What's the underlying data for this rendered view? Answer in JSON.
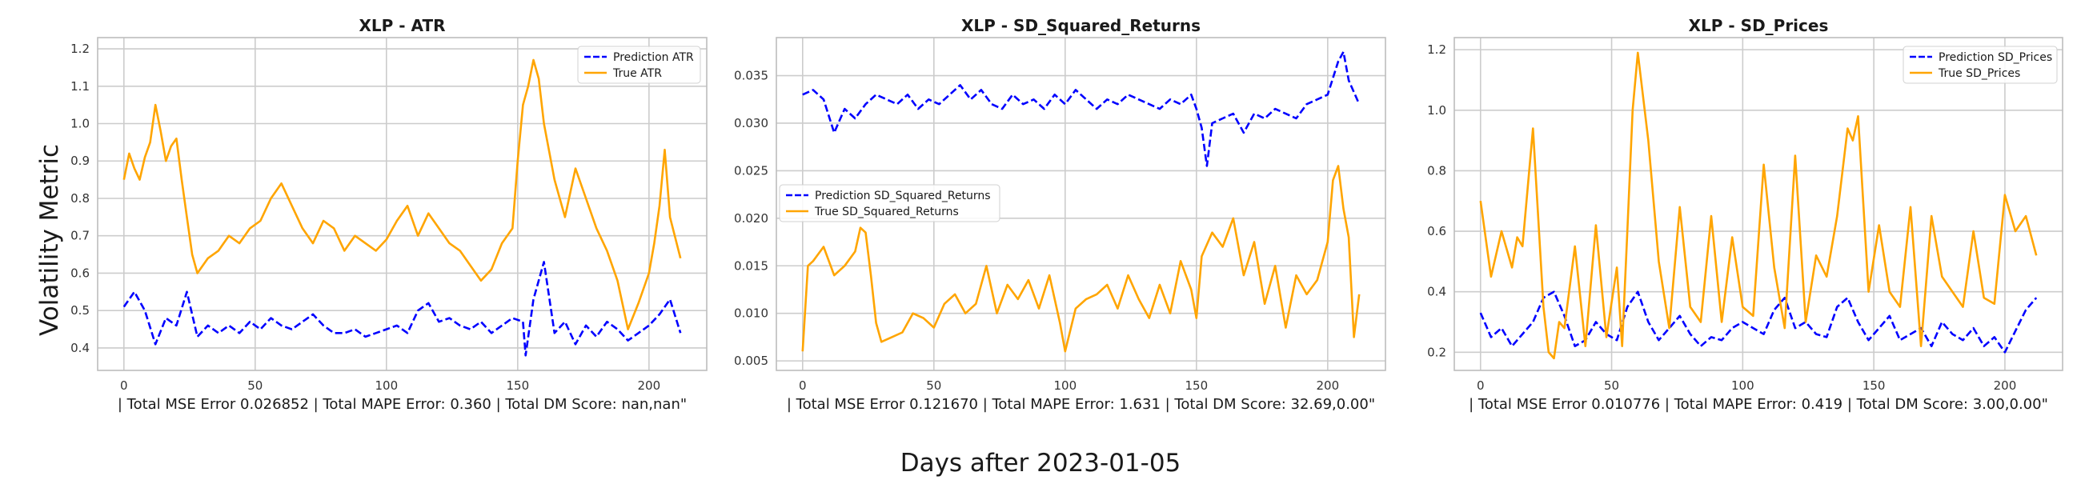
{
  "figure": {
    "supxlabel": "Days after 2023-01-05",
    "supylabel": "Volatility Metric",
    "colors": {
      "prediction": "#0000ff",
      "true": "#ffa500",
      "grid": "#cccccc",
      "frame": "#bdbdbd"
    }
  },
  "chart_data": [
    {
      "type": "line",
      "title": "XLP - ATR",
      "xlabel": "| Total MSE Error 0.026852 | Total MAPE Error: 0.360 | Total DM Score: nan,nan\"",
      "ylabel": "",
      "xlim": [
        -10,
        222
      ],
      "ylim": [
        0.34,
        1.23
      ],
      "xticks": [
        0,
        50,
        100,
        150,
        200
      ],
      "yticks": [
        0.4,
        0.5,
        0.6,
        0.7,
        0.8,
        0.9,
        1.0,
        1.1,
        1.2
      ],
      "tick_decimals": 1,
      "legend": "top-right",
      "series": [
        {
          "name": "Prediction ATR",
          "style": "dashed",
          "color": "#0000ff",
          "x": [
            0,
            4,
            8,
            12,
            16,
            20,
            24,
            28,
            32,
            36,
            40,
            44,
            48,
            52,
            56,
            60,
            64,
            68,
            72,
            76,
            80,
            84,
            88,
            92,
            96,
            100,
            104,
            108,
            112,
            116,
            120,
            124,
            128,
            132,
            136,
            140,
            144,
            148,
            152,
            153,
            156,
            160,
            164,
            168,
            172,
            176,
            180,
            184,
            188,
            192,
            196,
            200,
            204,
            208,
            212
          ],
          "values": [
            0.51,
            0.55,
            0.5,
            0.41,
            0.48,
            0.46,
            0.55,
            0.43,
            0.46,
            0.44,
            0.46,
            0.44,
            0.47,
            0.45,
            0.48,
            0.46,
            0.45,
            0.47,
            0.49,
            0.46,
            0.44,
            0.44,
            0.45,
            0.43,
            0.44,
            0.45,
            0.46,
            0.44,
            0.5,
            0.52,
            0.47,
            0.48,
            0.46,
            0.45,
            0.47,
            0.44,
            0.46,
            0.48,
            0.47,
            0.38,
            0.53,
            0.63,
            0.44,
            0.47,
            0.41,
            0.46,
            0.43,
            0.47,
            0.45,
            0.42,
            0.44,
            0.46,
            0.49,
            0.53,
            0.44
          ]
        },
        {
          "name": "True ATR",
          "style": "solid",
          "color": "#ffa500",
          "x": [
            0,
            2,
            4,
            6,
            8,
            10,
            12,
            14,
            16,
            18,
            20,
            22,
            24,
            26,
            28,
            30,
            32,
            36,
            40,
            44,
            48,
            52,
            56,
            60,
            64,
            68,
            72,
            76,
            80,
            84,
            88,
            92,
            96,
            100,
            104,
            108,
            112,
            116,
            120,
            124,
            128,
            132,
            136,
            140,
            144,
            148,
            150,
            152,
            154,
            156,
            158,
            160,
            164,
            168,
            172,
            176,
            180,
            184,
            188,
            192,
            196,
            200,
            202,
            204,
            206,
            208,
            212
          ],
          "values": [
            0.85,
            0.92,
            0.88,
            0.85,
            0.91,
            0.95,
            1.05,
            0.98,
            0.9,
            0.94,
            0.96,
            0.85,
            0.75,
            0.65,
            0.6,
            0.62,
            0.64,
            0.66,
            0.7,
            0.68,
            0.72,
            0.74,
            0.8,
            0.84,
            0.78,
            0.72,
            0.68,
            0.74,
            0.72,
            0.66,
            0.7,
            0.68,
            0.66,
            0.69,
            0.74,
            0.78,
            0.7,
            0.76,
            0.72,
            0.68,
            0.66,
            0.62,
            0.58,
            0.61,
            0.68,
            0.72,
            0.9,
            1.05,
            1.1,
            1.17,
            1.12,
            1.0,
            0.85,
            0.75,
            0.88,
            0.8,
            0.72,
            0.66,
            0.58,
            0.45,
            0.52,
            0.6,
            0.68,
            0.78,
            0.93,
            0.75,
            0.64
          ]
        }
      ]
    },
    {
      "type": "line",
      "title": "XLP - SD_Squared_Returns",
      "xlabel": "| Total MSE Error 0.121670 | Total MAPE Error: 1.631 | Total DM Score: 32.69,0.00\"",
      "ylabel": "",
      "xlim": [
        -10,
        222
      ],
      "ylim": [
        0.004,
        0.039
      ],
      "xticks": [
        0,
        50,
        100,
        150,
        200
      ],
      "yticks": [
        0.005,
        0.01,
        0.015,
        0.02,
        0.025,
        0.03,
        0.035
      ],
      "tick_decimals": 3,
      "legend": "center-left",
      "series": [
        {
          "name": "Prediction SD_Squared_Returns",
          "style": "dashed",
          "color": "#0000ff",
          "x": [
            0,
            4,
            8,
            12,
            16,
            20,
            24,
            28,
            32,
            36,
            40,
            44,
            48,
            52,
            56,
            60,
            64,
            68,
            72,
            76,
            80,
            84,
            88,
            92,
            96,
            100,
            104,
            108,
            112,
            116,
            120,
            124,
            128,
            132,
            136,
            140,
            144,
            148,
            150,
            152,
            154,
            156,
            160,
            164,
            168,
            172,
            176,
            180,
            184,
            188,
            192,
            196,
            200,
            204,
            206,
            208,
            212
          ],
          "values": [
            0.033,
            0.0335,
            0.0325,
            0.029,
            0.0315,
            0.0305,
            0.032,
            0.033,
            0.0325,
            0.032,
            0.033,
            0.0315,
            0.0325,
            0.032,
            0.033,
            0.034,
            0.0325,
            0.0335,
            0.032,
            0.0315,
            0.033,
            0.032,
            0.0325,
            0.0315,
            0.033,
            0.032,
            0.0335,
            0.0325,
            0.0315,
            0.0325,
            0.032,
            0.033,
            0.0325,
            0.032,
            0.0315,
            0.0325,
            0.032,
            0.033,
            0.0315,
            0.0295,
            0.0255,
            0.03,
            0.0305,
            0.031,
            0.029,
            0.031,
            0.0305,
            0.0315,
            0.031,
            0.0305,
            0.032,
            0.0325,
            0.033,
            0.0365,
            0.0375,
            0.0345,
            0.032
          ]
        },
        {
          "name": "True SD_Squared_Returns",
          "style": "solid",
          "color": "#ffa500",
          "x": [
            0,
            2,
            4,
            8,
            12,
            16,
            20,
            22,
            24,
            26,
            28,
            30,
            34,
            38,
            42,
            46,
            50,
            54,
            58,
            62,
            66,
            70,
            74,
            78,
            82,
            86,
            90,
            94,
            98,
            100,
            104,
            108,
            112,
            116,
            120,
            124,
            128,
            132,
            136,
            140,
            144,
            148,
            150,
            152,
            156,
            160,
            164,
            168,
            172,
            176,
            180,
            184,
            188,
            192,
            196,
            200,
            202,
            204,
            206,
            208,
            210,
            212
          ],
          "values": [
            0.006,
            0.015,
            0.0155,
            0.017,
            0.014,
            0.015,
            0.0165,
            0.019,
            0.0185,
            0.014,
            0.009,
            0.007,
            0.0075,
            0.008,
            0.01,
            0.0095,
            0.0085,
            0.011,
            0.012,
            0.01,
            0.011,
            0.015,
            0.01,
            0.013,
            0.0115,
            0.0135,
            0.0105,
            0.014,
            0.009,
            0.006,
            0.0105,
            0.0115,
            0.012,
            0.013,
            0.0105,
            0.014,
            0.0115,
            0.0095,
            0.013,
            0.01,
            0.0155,
            0.0125,
            0.0095,
            0.016,
            0.0185,
            0.017,
            0.02,
            0.014,
            0.0175,
            0.011,
            0.015,
            0.0085,
            0.014,
            0.012,
            0.0135,
            0.0175,
            0.024,
            0.0255,
            0.021,
            0.018,
            0.0075,
            0.012
          ]
        }
      ]
    },
    {
      "type": "line",
      "title": "XLP - SD_Prices",
      "xlabel": "| Total MSE Error 0.010776 | Total MAPE Error: 0.419 | Total DM Score: 3.00,0.00\"",
      "ylabel": "",
      "xlim": [
        -10,
        222
      ],
      "ylim": [
        0.14,
        1.24
      ],
      "xticks": [
        0,
        50,
        100,
        150,
        200
      ],
      "yticks": [
        0.2,
        0.4,
        0.6,
        0.8,
        1.0,
        1.2
      ],
      "tick_decimals": 1,
      "legend": "top-right",
      "series": [
        {
          "name": "Prediction SD_Prices",
          "style": "dashed",
          "color": "#0000ff",
          "x": [
            0,
            4,
            8,
            12,
            16,
            20,
            24,
            28,
            32,
            36,
            40,
            44,
            48,
            52,
            56,
            60,
            64,
            68,
            72,
            76,
            80,
            84,
            88,
            92,
            96,
            100,
            104,
            108,
            112,
            116,
            120,
            124,
            128,
            132,
            136,
            140,
            144,
            148,
            152,
            156,
            160,
            164,
            168,
            172,
            176,
            180,
            184,
            188,
            192,
            196,
            200,
            204,
            208,
            212
          ],
          "values": [
            0.33,
            0.25,
            0.28,
            0.22,
            0.26,
            0.3,
            0.38,
            0.4,
            0.32,
            0.22,
            0.24,
            0.3,
            0.26,
            0.24,
            0.35,
            0.4,
            0.3,
            0.24,
            0.28,
            0.32,
            0.26,
            0.22,
            0.25,
            0.24,
            0.28,
            0.3,
            0.28,
            0.26,
            0.34,
            0.38,
            0.28,
            0.3,
            0.26,
            0.25,
            0.35,
            0.38,
            0.3,
            0.24,
            0.28,
            0.32,
            0.24,
            0.26,
            0.28,
            0.22,
            0.3,
            0.26,
            0.24,
            0.28,
            0.22,
            0.25,
            0.2,
            0.27,
            0.34,
            0.38
          ]
        },
        {
          "name": "True SD_Prices",
          "style": "solid",
          "color": "#ffa500",
          "x": [
            0,
            4,
            8,
            12,
            14,
            16,
            20,
            24,
            26,
            28,
            30,
            32,
            36,
            40,
            44,
            48,
            52,
            54,
            56,
            58,
            60,
            64,
            68,
            72,
            76,
            80,
            84,
            88,
            92,
            96,
            100,
            104,
            108,
            112,
            116,
            120,
            124,
            128,
            132,
            136,
            140,
            142,
            144,
            148,
            152,
            156,
            160,
            164,
            168,
            172,
            176,
            180,
            184,
            188,
            192,
            196,
            200,
            204,
            208,
            212
          ],
          "values": [
            0.7,
            0.45,
            0.6,
            0.48,
            0.58,
            0.55,
            0.94,
            0.35,
            0.2,
            0.18,
            0.3,
            0.28,
            0.55,
            0.22,
            0.62,
            0.25,
            0.48,
            0.22,
            0.6,
            1.0,
            1.19,
            0.9,
            0.5,
            0.28,
            0.68,
            0.35,
            0.3,
            0.65,
            0.3,
            0.58,
            0.35,
            0.32,
            0.82,
            0.48,
            0.28,
            0.85,
            0.3,
            0.52,
            0.45,
            0.65,
            0.94,
            0.9,
            0.98,
            0.4,
            0.62,
            0.4,
            0.35,
            0.68,
            0.22,
            0.65,
            0.45,
            0.4,
            0.35,
            0.6,
            0.38,
            0.36,
            0.72,
            0.6,
            0.65,
            0.52
          ]
        }
      ]
    }
  ]
}
